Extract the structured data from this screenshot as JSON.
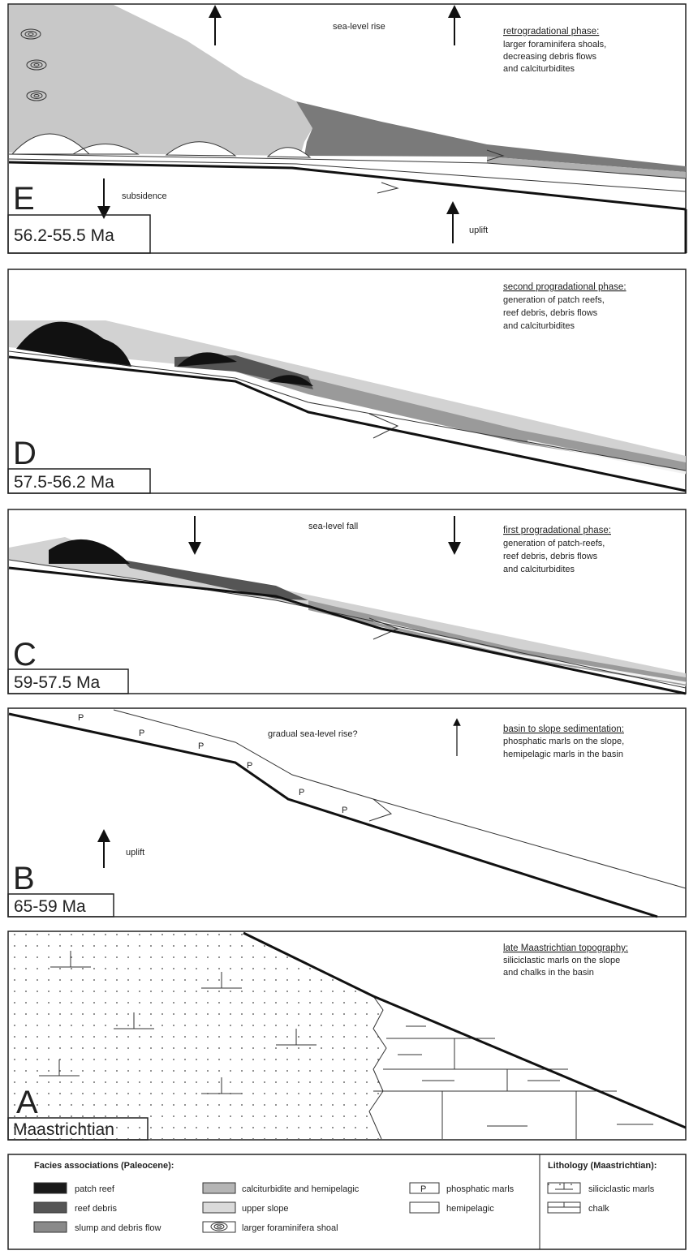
{
  "panels": [
    {
      "letter": "E",
      "age": "56.2-55.5 Ma",
      "phase_title": "retrogradational phase:",
      "phase_lines": [
        "larger foraminifera shoals,",
        "decreasing debris flows",
        "and calciturbidites"
      ],
      "notes": [
        "sea-level rise",
        "subsidence",
        "uplift"
      ]
    },
    {
      "letter": "D",
      "age": "57.5-56.2 Ma",
      "phase_title": "second progradational phase:",
      "phase_lines": [
        "generation of patch reefs,",
        "reef debris, debris flows",
        "and calciturbidites"
      ]
    },
    {
      "letter": "C",
      "age": "59-57.5 Ma",
      "phase_title": "first progradational phase:",
      "phase_lines": [
        "generation of patch-reefs,",
        "reef debris, debris flows",
        "and calciturbidites"
      ],
      "notes": [
        "sea-level fall"
      ]
    },
    {
      "letter": "B",
      "age": "65-59 Ma",
      "phase_title": "basin to slope sedimentation:",
      "phase_lines": [
        "phosphatic marls on the slope,",
        "hemipelagic marls in the basin"
      ],
      "notes": [
        "gradual sea-level rise?",
        "uplift"
      ],
      "p_labels": [
        "P",
        "P",
        "P",
        "P",
        "P",
        "P"
      ]
    },
    {
      "letter": "A",
      "age": "Maastrichtian",
      "phase_title": "late Maastrichtian topography:",
      "phase_lines": [
        "siliciclastic marls on the slope",
        "and chalks in the basin"
      ]
    }
  ],
  "legend": {
    "facies_title": "Facies associations (Paleocene):",
    "facies": [
      {
        "label": "patch reef"
      },
      {
        "label": "reef debris"
      },
      {
        "label": "slump and debris flow"
      },
      {
        "label": "calciturbidite and hemipelagic"
      },
      {
        "label": "upper slope"
      },
      {
        "label": "larger foraminifera shoal"
      },
      {
        "symbol": "P",
        "label": "phosphatic marls"
      },
      {
        "label": "hemipelagic"
      }
    ],
    "lithology_title": "Lithology (Maastrichtian):",
    "lithology": [
      "siliciclastic marls",
      "chalk"
    ]
  }
}
